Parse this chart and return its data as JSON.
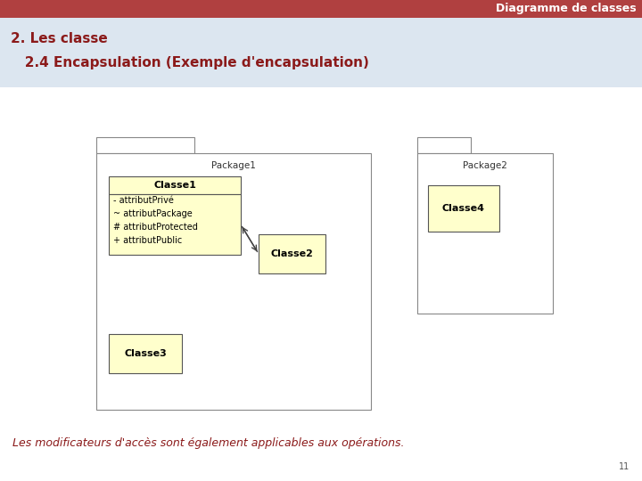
{
  "title_bar_text": "Diagramme de classes",
  "title_bar_bg": "#b04040",
  "title_bar_text_color": "#ffffff",
  "header_bg": "#dce6f0",
  "slide_bg": "#ffffff",
  "heading1": "2. Les classe",
  "heading2": "   2.4 Encapsulation (Exemple d'encapsulation)",
  "heading_color": "#8b1a1a",
  "footer_text": "Les modificateurs d'accès sont également applicables aux opérations.",
  "footer_color": "#8b1a1a",
  "page_number": "11",
  "package1_label": "Package1",
  "package2_label": "Package2",
  "classe1_name": "Classe1",
  "classe1_attrs": [
    "- attributPrivé",
    "~ attributPackage",
    "# attributProtected",
    "+ attributPublic"
  ],
  "classe2_name": "Classe2",
  "classe3_name": "Classe3",
  "classe4_name": "Classe4",
  "class_fill": "#ffffcc",
  "class_border": "#555555",
  "package_border": "#888888",
  "font_size_title": 9,
  "font_size_heading1": 11,
  "font_size_heading2": 11,
  "font_size_pkg_label": 7.5,
  "font_size_class_name": 8,
  "font_size_attr": 7,
  "font_size_footer": 9,
  "font_size_pagenum": 7
}
